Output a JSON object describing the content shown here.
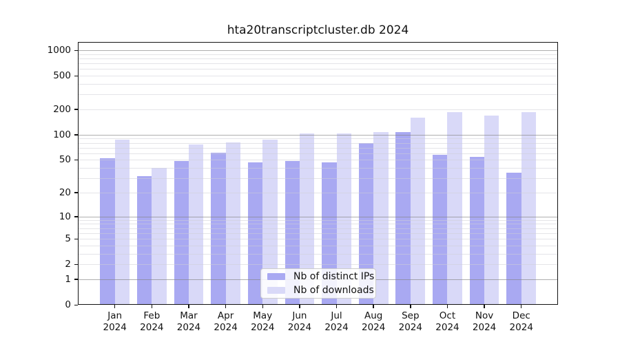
{
  "chart_data": {
    "type": "bar",
    "title": "hta20transcriptcluster.db 2024",
    "categories": [
      "Jan",
      "Feb",
      "Mar",
      "Apr",
      "May",
      "Jun",
      "Jul",
      "Aug",
      "Sep",
      "Oct",
      "Nov",
      "Dec"
    ],
    "category_year": "2024",
    "series": [
      {
        "name": "Nb of distinct IPs",
        "color": "#a9a9f2",
        "values": [
          52,
          32,
          49,
          61,
          47,
          49,
          47,
          79,
          108,
          58,
          54,
          35
        ]
      },
      {
        "name": "Nb of downloads",
        "color": "#d9d9f8",
        "values": [
          87,
          40,
          76,
          81,
          87,
          104,
          104,
          108,
          160,
          185,
          168,
          185
        ]
      }
    ],
    "xlabel": "",
    "ylabel": "",
    "y_scale": "log1p",
    "ylim": [
      0,
      1000
    ],
    "y_ticks": [
      0,
      1,
      2,
      5,
      10,
      20,
      50,
      100,
      200,
      500,
      1000
    ],
    "grid": {
      "on": true,
      "major_lines": [
        1,
        10,
        100,
        1000
      ],
      "minor_lines": [
        2,
        3,
        4,
        5,
        6,
        7,
        8,
        9,
        20,
        30,
        40,
        50,
        60,
        70,
        80,
        90,
        200,
        300,
        400,
        500,
        600,
        700,
        800,
        900
      ]
    },
    "legend_position": "bottom-center",
    "colors": {
      "distinct_ips": "#a9a9f2",
      "downloads": "#d9d9f8",
      "major_grid": "#828282",
      "minor_grid": "#cdcdd6",
      "spine": "#111111",
      "text": "#111111",
      "background": "#ffffff"
    }
  }
}
